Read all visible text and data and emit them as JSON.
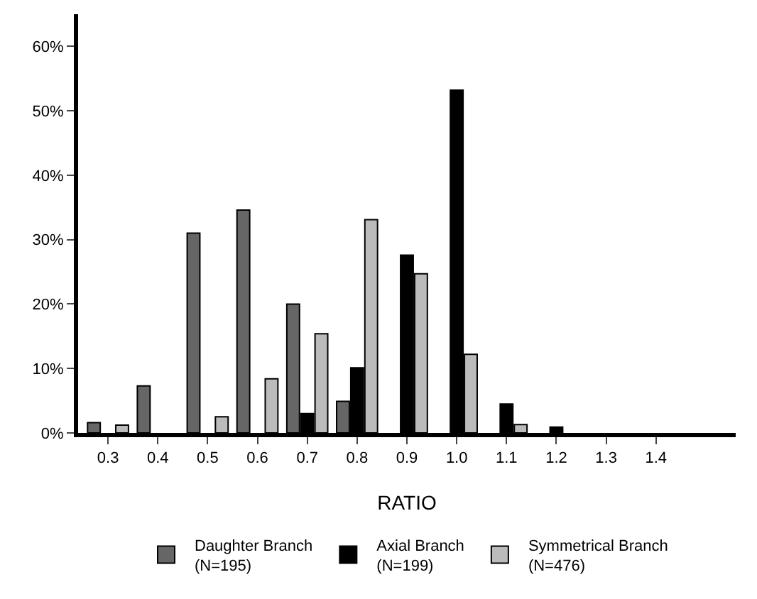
{
  "chart_data": {
    "type": "bar",
    "xlabel": "RATIO",
    "categories": [
      "0.3",
      "0.4",
      "0.5",
      "0.6",
      "0.7",
      "0.8",
      "0.9",
      "1.0",
      "1.1",
      "1.2",
      "1.3",
      "1.4",
      null
    ],
    "series": [
      {
        "name": "Daughter Branch\n(N=195)",
        "color": "#666666",
        "values": [
          1.6,
          7.3,
          31,
          34.6,
          20,
          4.9,
          null,
          null,
          null,
          null,
          null,
          null,
          null
        ]
      },
      {
        "name": "Axial Branch\n(N=199)",
        "color": "#000000",
        "values": [
          null,
          null,
          null,
          null,
          3,
          10.1,
          27.6,
          53.2,
          4.5,
          0.9,
          null,
          null,
          null
        ]
      },
      {
        "name": "Symmetrical Branch\n(N=476)",
        "color": "#bbbbbb",
        "values": [
          1.2,
          null,
          2.5,
          8.4,
          15.4,
          33.1,
          24.7,
          12.2,
          1.3,
          null,
          null,
          null,
          null
        ]
      }
    ],
    "ylim": [
      0,
      65
    ],
    "yticks": [
      {
        "value": 0,
        "label": "0%"
      },
      {
        "value": 10,
        "label": "10%"
      },
      {
        "value": 20,
        "label": "20%"
      },
      {
        "value": 30,
        "label": "30%"
      },
      {
        "value": 40,
        "label": "40%"
      },
      {
        "value": 50,
        "label": "50%"
      },
      {
        "value": 60,
        "label": "60%"
      }
    ],
    "grid": false,
    "legend": "bottom"
  }
}
